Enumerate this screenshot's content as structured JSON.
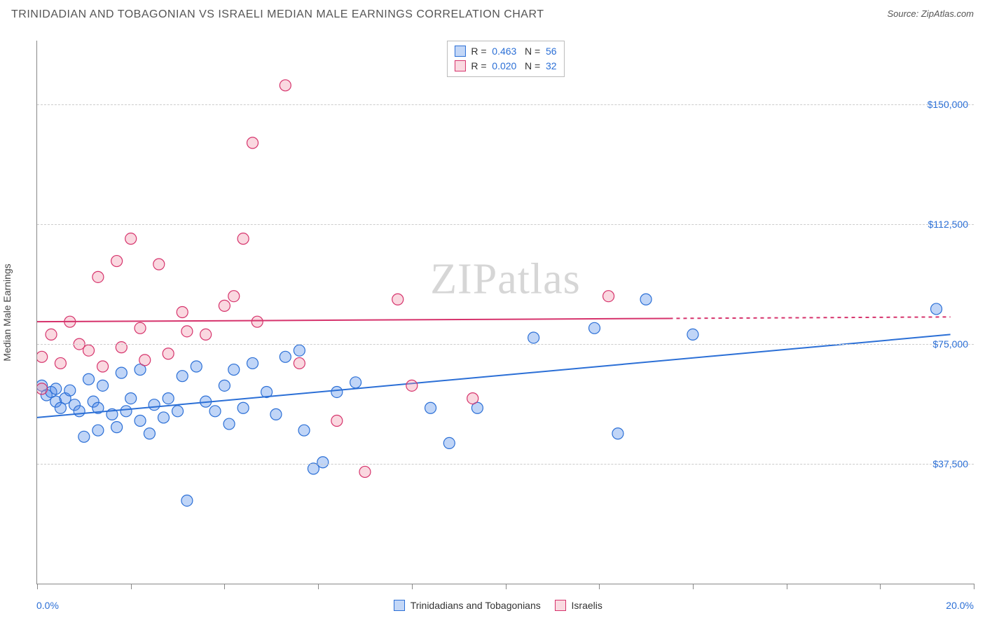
{
  "header": {
    "title": "TRINIDADIAN AND TOBAGONIAN VS ISRAELI MEDIAN MALE EARNINGS CORRELATION CHART",
    "source_label": "Source: ZipAtlas.com"
  },
  "watermark": "ZIPatlas",
  "chart": {
    "type": "scatter",
    "background_color": "#ffffff",
    "grid_color": "#cccccc",
    "axis_color": "#888888",
    "text_color": "#444444",
    "value_color": "#2b6fd6",
    "ylabel": "Median Male Earnings",
    "xlim": [
      0,
      20
    ],
    "ylim": [
      0,
      170000
    ],
    "x_tick_step": 2,
    "x_start_label": "0.0%",
    "x_end_label": "20.0%",
    "y_ticks": [
      {
        "v": 37500,
        "label": "$37,500"
      },
      {
        "v": 75000,
        "label": "$75,000"
      },
      {
        "v": 112500,
        "label": "$112,500"
      },
      {
        "v": 150000,
        "label": "$150,000"
      }
    ],
    "marker_radius": 8,
    "marker_fill_opacity": 0.35,
    "marker_stroke_width": 1.2,
    "line_width": 2,
    "series": [
      {
        "id": "s1",
        "label": "Trinidadians and Tobagonians",
        "color": "#4a86e8",
        "stroke": "#2b6fd6",
        "r": 0.463,
        "n": 56,
        "trend": {
          "x1": 0,
          "y1": 52000,
          "x2": 19.5,
          "y2": 78000,
          "dash_after_x": null
        },
        "points": [
          [
            0.1,
            62000
          ],
          [
            0.2,
            59000
          ],
          [
            0.3,
            60000
          ],
          [
            0.4,
            61000
          ],
          [
            0.4,
            57000
          ],
          [
            0.5,
            55000
          ],
          [
            0.6,
            58000
          ],
          [
            0.7,
            60500
          ],
          [
            0.8,
            56000
          ],
          [
            0.9,
            54000
          ],
          [
            1.0,
            46000
          ],
          [
            1.1,
            64000
          ],
          [
            1.2,
            57000
          ],
          [
            1.3,
            48000
          ],
          [
            1.3,
            55000
          ],
          [
            1.4,
            62000
          ],
          [
            1.6,
            53000
          ],
          [
            1.7,
            49000
          ],
          [
            1.8,
            66000
          ],
          [
            1.9,
            54000
          ],
          [
            2.0,
            58000
          ],
          [
            2.2,
            51000
          ],
          [
            2.2,
            67000
          ],
          [
            2.4,
            47000
          ],
          [
            2.5,
            56000
          ],
          [
            2.7,
            52000
          ],
          [
            2.8,
            58000
          ],
          [
            3.0,
            54000
          ],
          [
            3.1,
            65000
          ],
          [
            3.2,
            26000
          ],
          [
            3.4,
            68000
          ],
          [
            3.6,
            57000
          ],
          [
            3.8,
            54000
          ],
          [
            4.0,
            62000
          ],
          [
            4.1,
            50000
          ],
          [
            4.2,
            67000
          ],
          [
            4.4,
            55000
          ],
          [
            4.6,
            69000
          ],
          [
            4.9,
            60000
          ],
          [
            5.1,
            53000
          ],
          [
            5.3,
            71000
          ],
          [
            5.6,
            73000
          ],
          [
            5.7,
            48000
          ],
          [
            5.9,
            36000
          ],
          [
            6.1,
            38000
          ],
          [
            6.4,
            60000
          ],
          [
            6.8,
            63000
          ],
          [
            8.4,
            55000
          ],
          [
            8.8,
            44000
          ],
          [
            9.4,
            55000
          ],
          [
            10.6,
            77000
          ],
          [
            11.9,
            80000
          ],
          [
            12.4,
            47000
          ],
          [
            13.0,
            89000
          ],
          [
            14.0,
            78000
          ],
          [
            19.2,
            86000
          ]
        ]
      },
      {
        "id": "s2",
        "label": "Israelis",
        "color": "#f08fa5",
        "stroke": "#d6336c",
        "r": 0.02,
        "n": 32,
        "trend": {
          "x1": 0,
          "y1": 82000,
          "x2": 19.5,
          "y2": 83500,
          "dash_after_x": 13.5
        },
        "points": [
          [
            0.1,
            71000
          ],
          [
            0.1,
            61000
          ],
          [
            0.3,
            78000
          ],
          [
            0.5,
            69000
          ],
          [
            0.7,
            82000
          ],
          [
            0.9,
            75000
          ],
          [
            1.1,
            73000
          ],
          [
            1.3,
            96000
          ],
          [
            1.4,
            68000
          ],
          [
            1.7,
            101000
          ],
          [
            1.8,
            74000
          ],
          [
            2.0,
            108000
          ],
          [
            2.2,
            80000
          ],
          [
            2.3,
            70000
          ],
          [
            2.6,
            100000
          ],
          [
            2.8,
            72000
          ],
          [
            3.1,
            85000
          ],
          [
            3.2,
            79000
          ],
          [
            3.6,
            78000
          ],
          [
            4.0,
            87000
          ],
          [
            4.2,
            90000
          ],
          [
            4.4,
            108000
          ],
          [
            4.6,
            138000
          ],
          [
            4.7,
            82000
          ],
          [
            5.3,
            156000
          ],
          [
            5.6,
            69000
          ],
          [
            6.4,
            51000
          ],
          [
            7.0,
            35000
          ],
          [
            7.7,
            89000
          ],
          [
            8.0,
            62000
          ],
          [
            9.3,
            58000
          ],
          [
            12.2,
            90000
          ]
        ]
      }
    ]
  },
  "top_legend": {
    "r_label": "R",
    "n_label": "N",
    "eq": "="
  },
  "footer_legend": {}
}
